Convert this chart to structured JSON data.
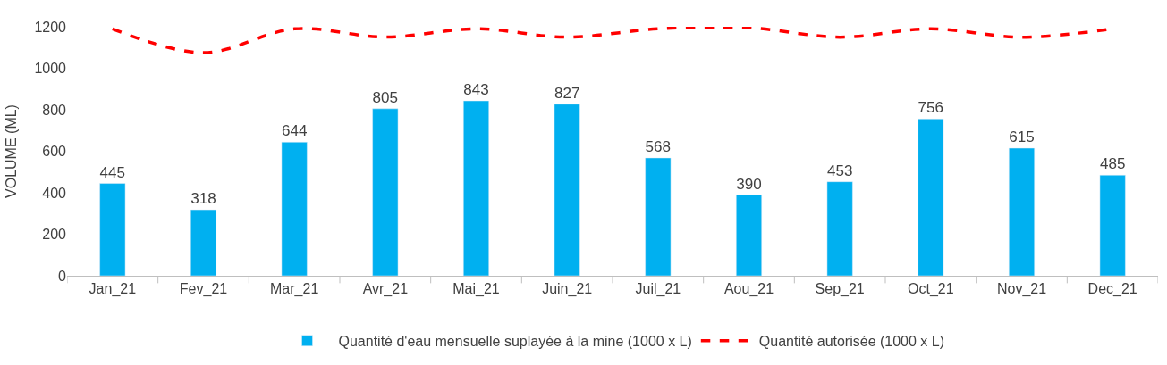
{
  "chart_data": {
    "type": "bar",
    "ylabel": "VOLUME (ML)",
    "categories": [
      "Jan_21",
      "Fev_21",
      "Mar_21",
      "Avr_21",
      "Mai_21",
      "Juin_21",
      "Juil_21",
      "Aou_21",
      "Sep_21",
      "Oct_21",
      "Nov_21",
      "Dec_21"
    ],
    "series": [
      {
        "name": "Quantité d'eau mensuelle suplayée à la mine (1000 x L)",
        "color": "#00b0f0",
        "values": [
          445,
          318,
          644,
          805,
          843,
          827,
          568,
          390,
          453,
          756,
          615,
          485
        ],
        "value_labels": [
          "445",
          "318",
          "644",
          "805",
          "843",
          "827",
          "568",
          "390",
          "453",
          "756",
          "615",
          "485"
        ]
      },
      {
        "name": "Quantité autorisée (1000 x L)",
        "type": "line",
        "color": "#ff0000",
        "line_style": "dashed",
        "marker": "none",
        "values": [
          1190,
          1075,
          1190,
          1150,
          1190,
          1150,
          1190,
          1195,
          1150,
          1190,
          1150,
          1190
        ]
      }
    ],
    "ylim": [
      0,
      1200
    ],
    "yticks": [
      0,
      200,
      400,
      600,
      800,
      1000,
      1200
    ],
    "grid": false,
    "legend": "bottom"
  }
}
